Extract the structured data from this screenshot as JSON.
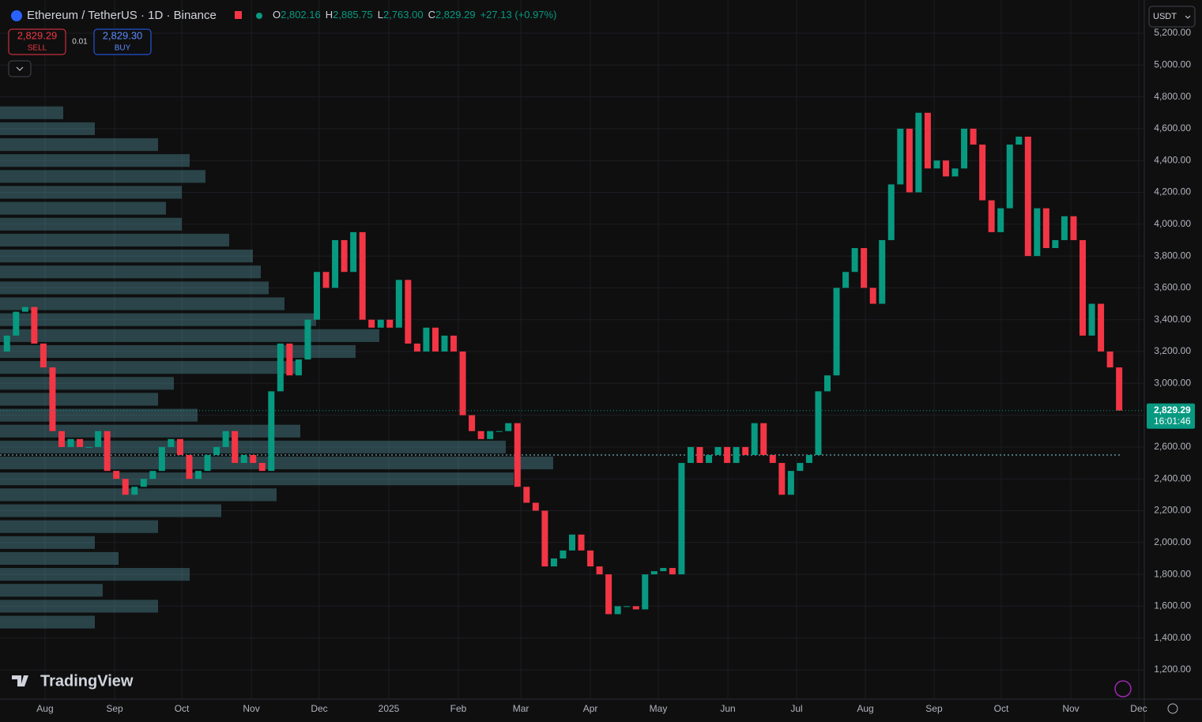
{
  "header": {
    "symbol": "Ethereum / TetherUS · 1D · Binance",
    "ohlc": [
      {
        "key": "O",
        "value": "2,802.16"
      },
      {
        "key": "H",
        "value": "2,885.75"
      },
      {
        "key": "L",
        "value": "2,763.00"
      },
      {
        "key": "C",
        "value": "2,829.29"
      }
    ],
    "change": "+27.13 (+0.97%)",
    "sell": {
      "price": "2,829.29",
      "label": "SELL"
    },
    "spread": "0.01",
    "buy": {
      "price": "2,829.30",
      "label": "BUY"
    },
    "currency": "USDT",
    "logo": "TradingView"
  },
  "chart_data": {
    "type": "candlestick",
    "open": 3200,
    "values": [
      3300,
      3450,
      3480,
      3250,
      3100,
      2700,
      2600,
      2650,
      2600,
      2600,
      2700,
      2450,
      2400,
      2300,
      2350,
      2400,
      2450,
      2600,
      2650,
      2550,
      2400,
      2450,
      2550,
      2600,
      2700,
      2500,
      2550,
      2500,
      2450,
      2950,
      3250,
      3050,
      3150,
      3400,
      3700,
      3600,
      3900,
      3700,
      3950,
      3400,
      3350,
      3400,
      3350,
      3650,
      3250,
      3200,
      3350,
      3200,
      3300,
      3200,
      2800,
      2700,
      2650,
      2700,
      2700,
      2750,
      2350,
      2250,
      2200,
      1850,
      1900,
      1950,
      2050,
      1950,
      1850,
      1800,
      1550,
      1600,
      1600,
      1580,
      1800,
      1820,
      1840,
      1800,
      2500,
      2600,
      2500,
      2550,
      2600,
      2500,
      2600,
      2550,
      2750,
      2550,
      2500,
      2300,
      2450,
      2500,
      2550,
      2950,
      3050,
      3600,
      3700,
      3850,
      3600,
      3500,
      3900,
      4250,
      4600,
      4200,
      4700,
      4350,
      4400,
      4300,
      4350,
      4600,
      4500,
      4150,
      3950,
      4100,
      4500,
      4550,
      3800,
      4100,
      3850,
      3900,
      4050,
      3900,
      3300,
      3500,
      3200,
      3100,
      2829.29
    ],
    "up_color": "#089981",
    "down_color": "#f23645",
    "xlim": [
      0,
      125
    ],
    "xticks": [
      {
        "value": 4.68,
        "label": "Aug"
      },
      {
        "value": 12.31,
        "label": "Sep"
      },
      {
        "value": 19.68,
        "label": "Oct"
      },
      {
        "value": 27.31,
        "label": "Nov"
      },
      {
        "value": 34.76,
        "label": "Dec"
      },
      {
        "value": 42.39,
        "label": "2025"
      },
      {
        "value": 50.02,
        "label": "Feb"
      },
      {
        "value": 56.87,
        "label": "Mar"
      },
      {
        "value": 64.5,
        "label": "Apr"
      },
      {
        "value": 71.95,
        "label": "May"
      },
      {
        "value": 79.58,
        "label": "Jun"
      },
      {
        "value": 87.12,
        "label": "Jul"
      },
      {
        "value": 94.66,
        "label": "Aug"
      },
      {
        "value": 102.2,
        "label": "Sep"
      },
      {
        "value": 109.57,
        "label": "Oct"
      },
      {
        "value": 117.2,
        "label": "Nov"
      },
      {
        "value": 124.65,
        "label": "Dec"
      }
    ],
    "ylim": [
      1200,
      5200
    ],
    "yticks": [
      {
        "value": 1200,
        "label": "1,200.00"
      },
      {
        "value": 1400,
        "label": "1,400.00"
      },
      {
        "value": 1600,
        "label": "1,600.00"
      },
      {
        "value": 1800,
        "label": "1,800.00"
      },
      {
        "value": 2000,
        "label": "2,000.00"
      },
      {
        "value": 2200,
        "label": "2,200.00"
      },
      {
        "value": 2400,
        "label": "2,400.00"
      },
      {
        "value": 2600,
        "label": "2,600.00"
      },
      {
        "value": 2800,
        "label": "2,800.00"
      },
      {
        "value": 3000,
        "label": "3,000.00"
      },
      {
        "value": 3200,
        "label": "3,200.00"
      },
      {
        "value": 3400,
        "label": "3,400.00"
      },
      {
        "value": 3600,
        "label": "3,600.00"
      },
      {
        "value": 3800,
        "label": "3,800.00"
      },
      {
        "value": 4000,
        "label": "4,000.00"
      },
      {
        "value": 4200,
        "label": "4,200.00"
      },
      {
        "value": 4400,
        "label": "4,400.00"
      },
      {
        "value": 4600,
        "label": "4,600.00"
      },
      {
        "value": 4800,
        "label": "4,800.00"
      },
      {
        "value": 5000,
        "label": "5,000.00"
      },
      {
        "value": 5200,
        "label": "5,200.00"
      }
    ],
    "grid": true,
    "last_price": {
      "value": 2829.29,
      "label": "2,829.29",
      "countdown": "16:01:46"
    },
    "volume_profile": {
      "prices": [
        1500,
        1600,
        1700,
        1800,
        1900,
        2000,
        2100,
        2200,
        2300,
        2400,
        2500,
        2600,
        2700,
        2800,
        2900,
        3000,
        3100,
        3200,
        3300,
        3400,
        3500,
        3600,
        3700,
        3800,
        3900,
        4000,
        4100,
        4200,
        4300,
        4400,
        4500,
        4600,
        4700
      ],
      "volumes": [
        120,
        200,
        130,
        240,
        150,
        120,
        200,
        280,
        350,
        650,
        700,
        640,
        380,
        250,
        200,
        220,
        380,
        450,
        480,
        400,
        360,
        340,
        330,
        320,
        290,
        230,
        210,
        230,
        260,
        240,
        200,
        120,
        80
      ],
      "lim": [
        0,
        1000
      ],
      "poc": 2550,
      "color": "#5fa8b8"
    }
  }
}
